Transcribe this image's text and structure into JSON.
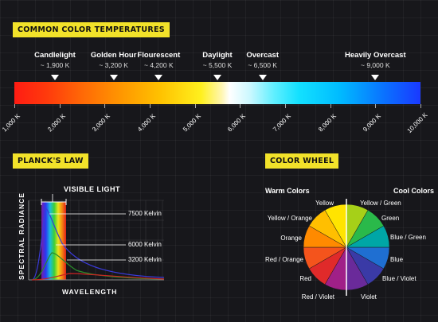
{
  "temps": {
    "title": "COMMON COLOR TEMPERATURES",
    "markers": [
      {
        "name": "Candlelight",
        "kelvin": "~ 1,900 K",
        "value": 1900
      },
      {
        "name": "Golden Hour",
        "kelvin": "~ 3,200 K",
        "value": 3200
      },
      {
        "name": "Flourescent",
        "kelvin": "~ 4,200 K",
        "value": 4200
      },
      {
        "name": "Daylight",
        "kelvin": "~ 5,500 K",
        "value": 5500
      },
      {
        "name": "Overcast",
        "kelvin": "~ 6,500 K",
        "value": 6500
      },
      {
        "name": "Heavily Overcast",
        "kelvin": "~ 9,000 K",
        "value": 9000
      }
    ],
    "scale": [
      "1,000 K",
      "2,000 K",
      "3,000 K",
      "4,000 K",
      "5,000 K",
      "6,000 K",
      "7,000 K",
      "8,000 K",
      "9,000 K",
      "10,000 K"
    ]
  },
  "planck": {
    "title": "PLANCK'S LAW",
    "visible_label": "VISIBLE LIGHT",
    "ylabel": "SPECTRAL RADIANCE",
    "xlabel": "WAVELENGTH",
    "curves": [
      "7500 Kelvin",
      "6000 Kelvin",
      "3200 Kelvin"
    ],
    "curve_colors": [
      "#3a3ad8",
      "#2a8a2a",
      "#cc2222"
    ]
  },
  "wheel": {
    "title": "COLOR WHEEL",
    "warm_title": "Warm Colors",
    "cool_title": "Cool Colors",
    "warm": [
      "Yellow",
      "Yellow / Orange",
      "Orange",
      "Red / Orange",
      "Red",
      "Red / Violet"
    ],
    "cool": [
      "Yellow / Green",
      "Green",
      "Blue / Green",
      "Blue",
      "Blue / Violet",
      "Violet"
    ],
    "warm_colors": [
      "#ffe400",
      "#ffbf00",
      "#ff8a00",
      "#f4541c",
      "#e02a2a",
      "#a02088"
    ],
    "cool_colors": [
      "#a6d018",
      "#2ab94a",
      "#00a6a6",
      "#1f6fd2",
      "#3a3aa6",
      "#6a2a9a"
    ]
  }
}
